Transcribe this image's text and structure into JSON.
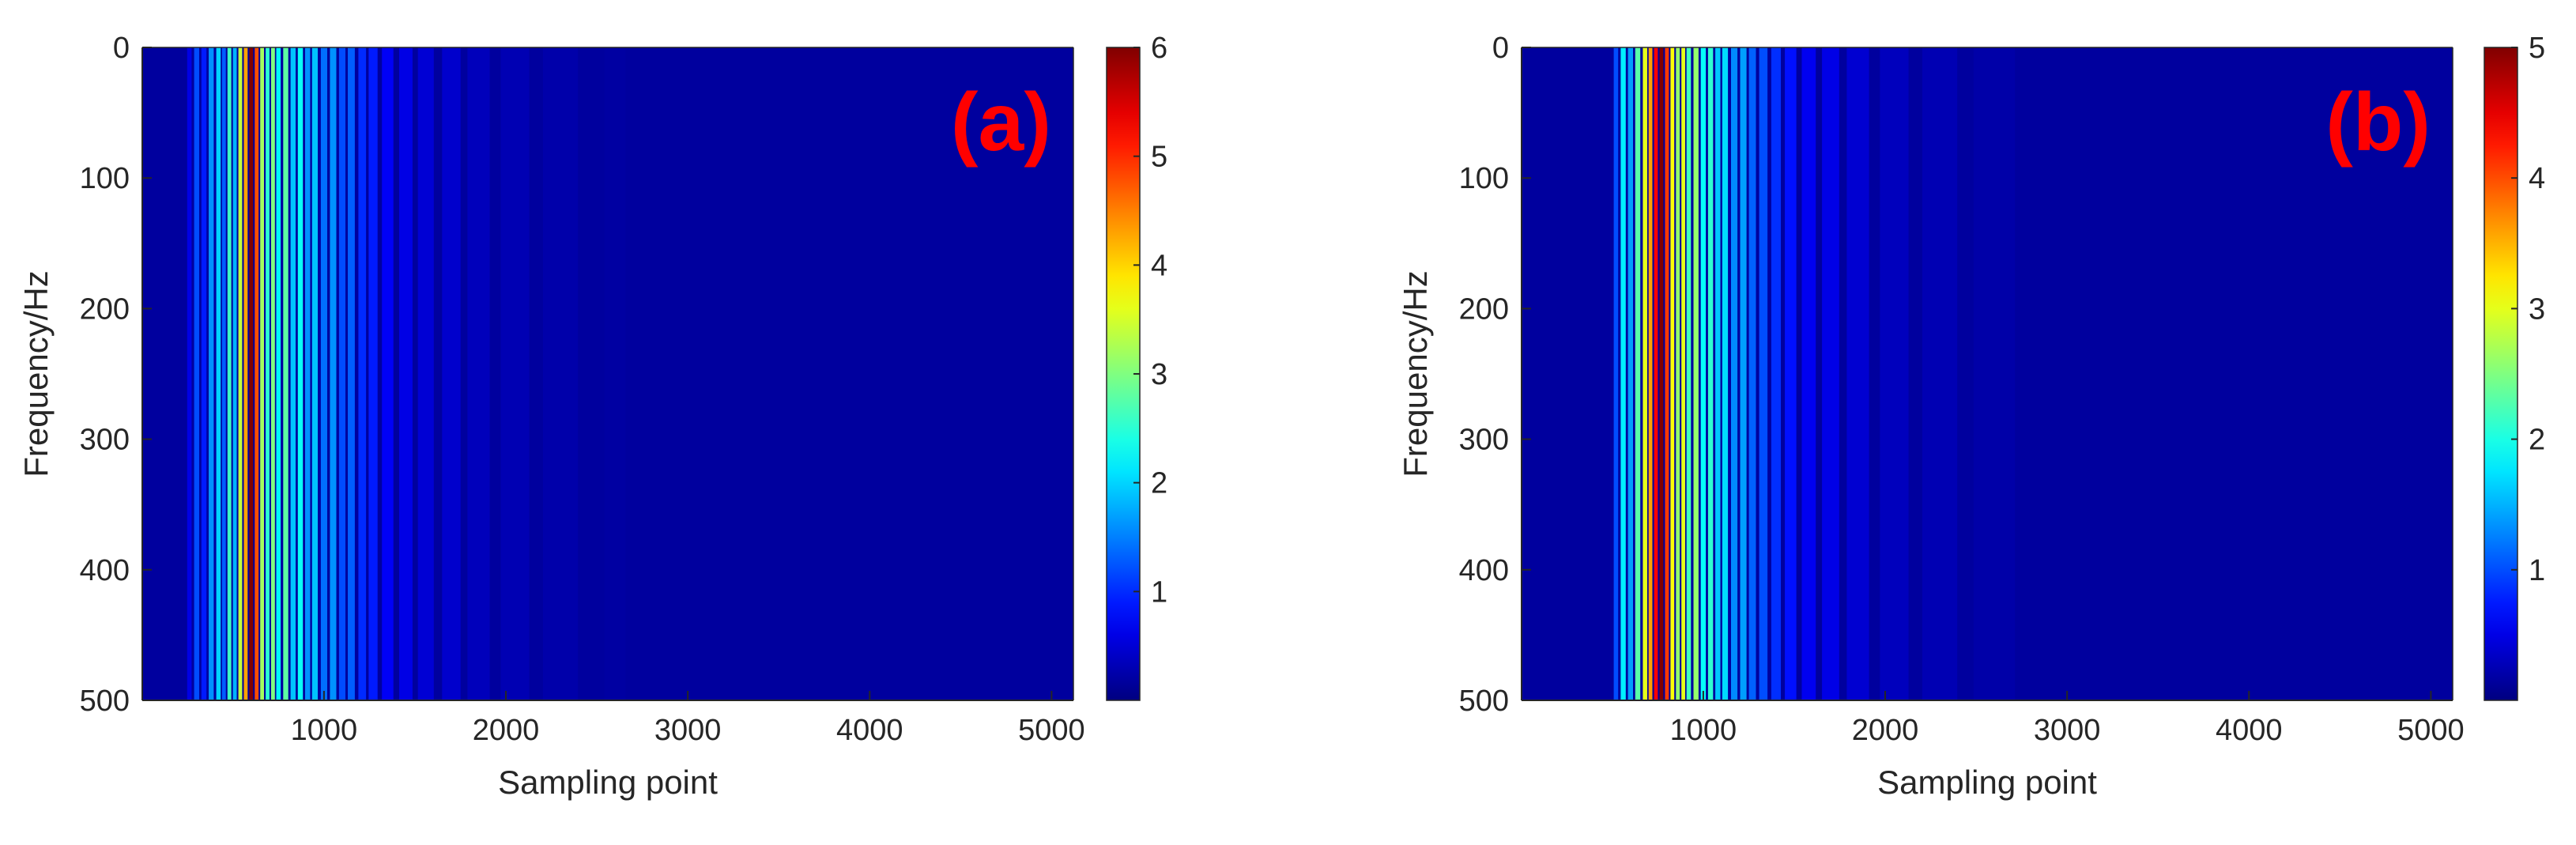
{
  "colors": {
    "panel_label": "#ff0000",
    "axis": "#262626",
    "background_field": "#00008f"
  },
  "chart_data": [
    {
      "type": "heatmap",
      "panel_label": "(a)",
      "xlabel": "Sampling point",
      "ylabel": "Frequency/Hz",
      "xlim": [
        1,
        5120
      ],
      "ylim": [
        0,
        500
      ],
      "y_reversed": true,
      "xticks": [
        1000,
        2000,
        3000,
        4000,
        5000
      ],
      "yticks": [
        0,
        100,
        200,
        300,
        400,
        500
      ],
      "colorbar": {
        "colormap": "jet",
        "range": [
          0,
          6
        ],
        "ticks": [
          1,
          2,
          3,
          4,
          5,
          6
        ]
      },
      "grid": false,
      "columns": [
        {
          "x": 260,
          "v": 0.6
        },
        {
          "x": 300,
          "v": 1.2
        },
        {
          "x": 340,
          "v": 0.9
        },
        {
          "x": 380,
          "v": 1.6
        },
        {
          "x": 420,
          "v": 2.0
        },
        {
          "x": 450,
          "v": 1.3
        },
        {
          "x": 480,
          "v": 2.6
        },
        {
          "x": 510,
          "v": 1.8
        },
        {
          "x": 540,
          "v": 3.4
        },
        {
          "x": 570,
          "v": 4.3
        },
        {
          "x": 600,
          "v": 6.0
        },
        {
          "x": 630,
          "v": 4.8
        },
        {
          "x": 660,
          "v": 3.2
        },
        {
          "x": 690,
          "v": 2.5
        },
        {
          "x": 720,
          "v": 3.0
        },
        {
          "x": 750,
          "v": 2.2
        },
        {
          "x": 790,
          "v": 2.8
        },
        {
          "x": 830,
          "v": 1.9
        },
        {
          "x": 870,
          "v": 2.3
        },
        {
          "x": 910,
          "v": 1.6
        },
        {
          "x": 950,
          "v": 1.9
        },
        {
          "x": 1000,
          "v": 1.4
        },
        {
          "x": 1050,
          "v": 1.6
        },
        {
          "x": 1100,
          "v": 1.2
        },
        {
          "x": 1150,
          "v": 1.3
        },
        {
          "x": 1210,
          "v": 1.0
        },
        {
          "x": 1270,
          "v": 0.9
        },
        {
          "x": 1350,
          "v": 0.7
        },
        {
          "x": 1450,
          "v": 0.6
        },
        {
          "x": 1560,
          "v": 0.5
        },
        {
          "x": 1700,
          "v": 0.45
        },
        {
          "x": 1850,
          "v": 0.35
        },
        {
          "x": 2050,
          "v": 0.3
        },
        {
          "x": 2300,
          "v": 0.25
        },
        {
          "x": 2600,
          "v": 0.2
        }
      ]
    },
    {
      "type": "heatmap",
      "panel_label": "(b)",
      "xlabel": "Sampling point",
      "ylabel": "Frequency/Hz",
      "xlim": [
        1,
        5120
      ],
      "ylim": [
        0,
        500
      ],
      "y_reversed": true,
      "xticks": [
        1000,
        2000,
        3000,
        4000,
        5000
      ],
      "yticks": [
        0,
        100,
        200,
        300,
        400,
        500
      ],
      "colorbar": {
        "colormap": "jet",
        "range": [
          0,
          5
        ],
        "ticks": [
          1,
          2,
          3,
          4,
          5
        ]
      },
      "grid": false,
      "columns": [
        {
          "x": 520,
          "v": 1.0
        },
        {
          "x": 560,
          "v": 1.8
        },
        {
          "x": 600,
          "v": 1.4
        },
        {
          "x": 640,
          "v": 2.3
        },
        {
          "x": 680,
          "v": 3.0
        },
        {
          "x": 710,
          "v": 3.6
        },
        {
          "x": 740,
          "v": 4.4
        },
        {
          "x": 770,
          "v": 5.0
        },
        {
          "x": 800,
          "v": 4.1
        },
        {
          "x": 830,
          "v": 3.1
        },
        {
          "x": 860,
          "v": 2.6
        },
        {
          "x": 890,
          "v": 3.0
        },
        {
          "x": 920,
          "v": 2.2
        },
        {
          "x": 960,
          "v": 2.6
        },
        {
          "x": 1000,
          "v": 1.9
        },
        {
          "x": 1040,
          "v": 2.1
        },
        {
          "x": 1080,
          "v": 1.6
        },
        {
          "x": 1120,
          "v": 1.7
        },
        {
          "x": 1170,
          "v": 1.3
        },
        {
          "x": 1220,
          "v": 1.4
        },
        {
          "x": 1270,
          "v": 1.1
        },
        {
          "x": 1330,
          "v": 1.0
        },
        {
          "x": 1400,
          "v": 0.85
        },
        {
          "x": 1480,
          "v": 0.7
        },
        {
          "x": 1580,
          "v": 0.55
        },
        {
          "x": 1700,
          "v": 0.5
        },
        {
          "x": 1850,
          "v": 0.4
        },
        {
          "x": 2050,
          "v": 0.3
        },
        {
          "x": 2300,
          "v": 0.25
        },
        {
          "x": 2600,
          "v": 0.2
        },
        {
          "x": 2950,
          "v": 0.15
        }
      ]
    }
  ]
}
